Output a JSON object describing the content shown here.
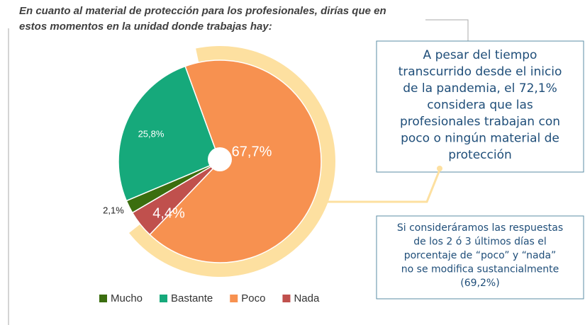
{
  "chart_data": {
    "type": "pie",
    "title": [
      "En cuanto al material de protección para los profesionales, dirías que en",
      "estos momentos en la unidad donde trabajas hay:"
    ],
    "categories": [
      "Poco",
      "Nada",
      "Mucho",
      "Bastante"
    ],
    "values": [
      67.7,
      4.4,
      2.1,
      25.8
    ],
    "value_labels": [
      "67,7%",
      "4,4%",
      "2,1%",
      "25,8%"
    ],
    "colors": [
      "#f79150",
      "#c0504d",
      "#3b6e0f",
      "#16a97b"
    ],
    "legend_order": [
      "Mucho",
      "Bastante",
      "Poco",
      "Nada"
    ],
    "annotations": [
      [
        "A pesar del tiempo",
        "transcurrido desde el inicio",
        "de la pandemia, el 72,1%",
        "considera que las",
        "profesionales trabajan con",
        "poco o ningún material de",
        "protección"
      ],
      [
        "Si consideráramos las respuestas",
        "de los 2 ó 3 últimos días el",
        "porcentaje de “poco” y “nada”",
        "no se modifica sustancialmente",
        "(69,2%)"
      ]
    ]
  }
}
